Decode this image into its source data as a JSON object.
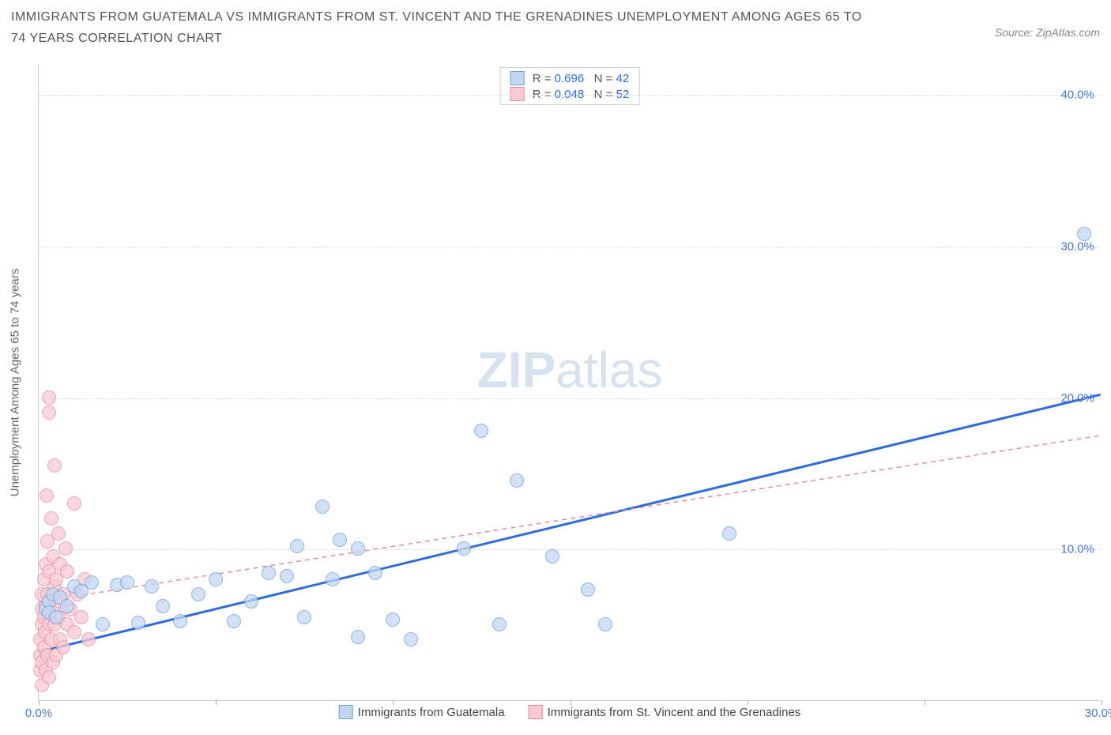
{
  "header": {
    "title": "IMMIGRANTS FROM GUATEMALA VS IMMIGRANTS FROM ST. VINCENT AND THE GRENADINES UNEMPLOYMENT AMONG AGES 65 TO 74 YEARS CORRELATION CHART",
    "source_prefix": "Source: ",
    "source": "ZipAtlas.com"
  },
  "watermark": {
    "zip": "ZIP",
    "atlas": "atlas"
  },
  "chart": {
    "type": "scatter",
    "ylabel": "Unemployment Among Ages 65 to 74 years",
    "xlim": [
      0,
      30
    ],
    "ylim": [
      0,
      42
    ],
    "x_ticks": [
      0,
      5,
      10,
      15,
      20,
      25,
      30
    ],
    "x_tick_labels": {
      "0": "0.0%",
      "30": "30.0%"
    },
    "y_grid": [
      10,
      20,
      30,
      40
    ],
    "y_tick_labels": {
      "10": "10.0%",
      "20": "20.0%",
      "30": "30.0%",
      "40": "40.0%"
    },
    "background_color": "#ffffff",
    "grid_color": "#dddddd",
    "grid_dash": "4,4",
    "axis_color": "#cccccc",
    "tick_label_color": "#4878d0",
    "tick_fontsize": 15,
    "axis_label_color": "#666666",
    "axis_label_fontsize": 15,
    "marker_radius": 9,
    "marker_border_width": 1,
    "series": [
      {
        "key": "guatemala",
        "label": "Immigrants from Guatemala",
        "fill": "#c3d7f3",
        "stroke": "#6f9fd8",
        "fill_opacity": 0.75,
        "R": "0.696",
        "N": "42",
        "trend": {
          "x1": 0,
          "y1": 3.2,
          "x2": 30,
          "y2": 20.2,
          "color": "#2d6cdf",
          "width": 3,
          "dash": "none"
        },
        "points": [
          [
            0.2,
            6.0
          ],
          [
            0.3,
            6.5
          ],
          [
            0.3,
            5.8
          ],
          [
            0.4,
            7.0
          ],
          [
            0.5,
            5.5
          ],
          [
            0.6,
            6.8
          ],
          [
            0.8,
            6.2
          ],
          [
            1.0,
            7.5
          ],
          [
            1.2,
            7.2
          ],
          [
            1.5,
            7.8
          ],
          [
            1.8,
            5.0
          ],
          [
            2.2,
            7.6
          ],
          [
            2.5,
            7.8
          ],
          [
            2.8,
            5.1
          ],
          [
            3.2,
            7.5
          ],
          [
            3.5,
            6.2
          ],
          [
            4.0,
            5.2
          ],
          [
            4.5,
            7.0
          ],
          [
            5.0,
            8.0
          ],
          [
            5.5,
            5.2
          ],
          [
            6.0,
            6.5
          ],
          [
            6.5,
            8.4
          ],
          [
            7.0,
            8.2
          ],
          [
            7.3,
            10.2
          ],
          [
            7.5,
            5.5
          ],
          [
            8.0,
            12.8
          ],
          [
            8.3,
            8.0
          ],
          [
            8.5,
            10.6
          ],
          [
            9.0,
            10.0
          ],
          [
            9.0,
            4.2
          ],
          [
            9.5,
            8.4
          ],
          [
            10.0,
            5.3
          ],
          [
            10.5,
            4.0
          ],
          [
            12.0,
            10.0
          ],
          [
            12.5,
            17.8
          ],
          [
            13.0,
            5.0
          ],
          [
            13.5,
            14.5
          ],
          [
            14.5,
            9.5
          ],
          [
            15.5,
            7.3
          ],
          [
            16.0,
            5.0
          ],
          [
            19.5,
            11.0
          ],
          [
            29.5,
            30.8
          ]
        ]
      },
      {
        "key": "stvincent",
        "label": "Immigrants from St. Vincent and the Grenadines",
        "fill": "#f7cad4",
        "stroke": "#e88ba0",
        "fill_opacity": 0.75,
        "R": "0.048",
        "N": "52",
        "trend": {
          "x1": 0,
          "y1": 6.5,
          "x2": 30,
          "y2": 17.5,
          "color": "#e88ba0",
          "width": 1.5,
          "dash": "6,5"
        },
        "points": [
          [
            0.05,
            2.0
          ],
          [
            0.05,
            3.0
          ],
          [
            0.05,
            4.0
          ],
          [
            0.1,
            1.0
          ],
          [
            0.1,
            2.5
          ],
          [
            0.1,
            5.0
          ],
          [
            0.1,
            6.0
          ],
          [
            0.1,
            7.0
          ],
          [
            0.15,
            3.5
          ],
          [
            0.15,
            5.5
          ],
          [
            0.15,
            8.0
          ],
          [
            0.18,
            4.5
          ],
          [
            0.2,
            2.0
          ],
          [
            0.2,
            6.2
          ],
          [
            0.2,
            9.0
          ],
          [
            0.22,
            13.5
          ],
          [
            0.25,
            3.0
          ],
          [
            0.25,
            7.0
          ],
          [
            0.25,
            10.5
          ],
          [
            0.28,
            5.0
          ],
          [
            0.3,
            1.5
          ],
          [
            0.3,
            6.5
          ],
          [
            0.3,
            8.5
          ],
          [
            0.3,
            19.0
          ],
          [
            0.3,
            20.0
          ],
          [
            0.35,
            4.0
          ],
          [
            0.35,
            12.0
          ],
          [
            0.4,
            2.5
          ],
          [
            0.4,
            6.0
          ],
          [
            0.4,
            9.5
          ],
          [
            0.45,
            5.0
          ],
          [
            0.45,
            7.5
          ],
          [
            0.45,
            15.5
          ],
          [
            0.5,
            3.0
          ],
          [
            0.5,
            8.0
          ],
          [
            0.55,
            5.5
          ],
          [
            0.55,
            11.0
          ],
          [
            0.6,
            4.0
          ],
          [
            0.6,
            6.5
          ],
          [
            0.6,
            9.0
          ],
          [
            0.7,
            3.5
          ],
          [
            0.7,
            7.0
          ],
          [
            0.75,
            10.0
          ],
          [
            0.8,
            5.0
          ],
          [
            0.8,
            8.5
          ],
          [
            0.9,
            6.0
          ],
          [
            1.0,
            4.5
          ],
          [
            1.0,
            13.0
          ],
          [
            1.1,
            7.0
          ],
          [
            1.2,
            5.5
          ],
          [
            1.3,
            8.0
          ],
          [
            1.4,
            4.0
          ]
        ]
      }
    ],
    "legend_top": {
      "border_color": "#cccccc",
      "text_color": "#555555",
      "value_color": "#2d6cdf",
      "R_label": "R =",
      "N_label": "N ="
    }
  }
}
